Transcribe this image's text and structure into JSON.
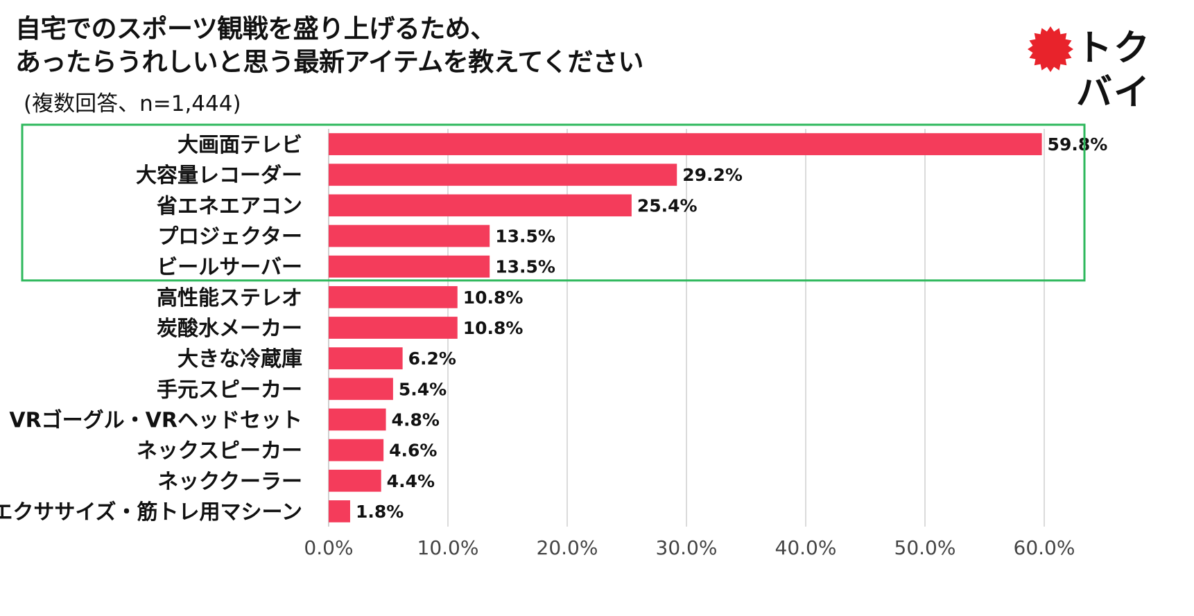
{
  "title_line1": "自宅でのスポーツ観戦を盛り上げるため、",
  "title_line2": "あったらうれしいと思う最新アイテムを教えてください",
  "subtitle": "(複数回答、n=1,444)",
  "logo_text": "トクバイ",
  "colors": {
    "bar": "#f43c5b",
    "highlight_box": "#2eb85c",
    "logo_burst": "#e8232b",
    "grid": "#cfcfcf"
  },
  "chart_data": {
    "type": "bar",
    "orientation": "horizontal",
    "categories": [
      "大画面テレビ",
      "大容量レコーダー",
      "省エネエアコン",
      "プロジェクター",
      "ビールサーバー",
      "高性能ステレオ",
      "炭酸水メーカー",
      "大きな冷蔵庫",
      "手元スピーカー",
      "VRゴーグル・VRヘッドセット",
      "ネックスピーカー",
      "ネッククーラー",
      "エクササイズ・筋トレ用マシーン"
    ],
    "values": [
      59.8,
      29.2,
      25.4,
      13.5,
      13.5,
      10.8,
      10.8,
      6.2,
      5.4,
      4.8,
      4.6,
      4.4,
      1.8
    ],
    "value_labels": [
      "59.8%",
      "29.2%",
      "25.4%",
      "13.5%",
      "13.5%",
      "10.8%",
      "10.8%",
      "6.2%",
      "5.4%",
      "4.8%",
      "4.6%",
      "4.4%",
      "1.8%"
    ],
    "xlim": [
      0,
      60
    ],
    "ticks": [
      0,
      10,
      20,
      30,
      40,
      50,
      60
    ],
    "tick_labels": [
      "0.0%",
      "10.0%",
      "20.0%",
      "30.0%",
      "40.0%",
      "50.0%",
      "60.0%"
    ],
    "grid": true,
    "highlighted_categories": [
      "大画面テレビ",
      "大容量レコーダー",
      "省エネエアコン",
      "プロジェクター",
      "ビールサーバー"
    ]
  }
}
